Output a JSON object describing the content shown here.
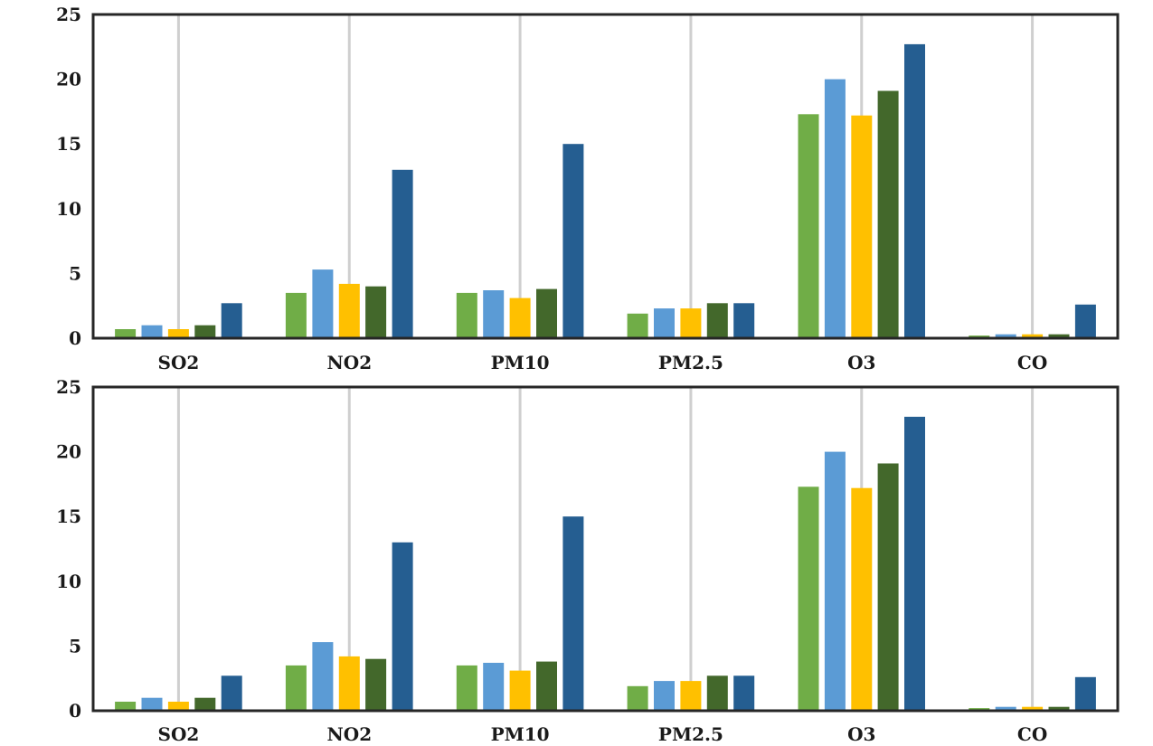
{
  "chart_data": [
    {
      "type": "bar",
      "categories": [
        "SO2",
        "NO2",
        "PM10",
        "PM2.5",
        "O3",
        "CO"
      ],
      "ylim": [
        0,
        25
      ],
      "yticks": [
        0,
        5,
        10,
        15,
        20,
        25
      ],
      "grid": "vertical-at-categories",
      "legend": "none",
      "series": [
        {
          "color": "#70ad47",
          "values": [
            0.7,
            3.5,
            3.5,
            1.9,
            17.3,
            0.2
          ]
        },
        {
          "color": "#5b9bd5",
          "values": [
            1.0,
            5.3,
            3.7,
            2.3,
            20.0,
            0.3
          ]
        },
        {
          "color": "#ffc000",
          "values": [
            0.7,
            4.2,
            3.1,
            2.3,
            17.2,
            0.3
          ]
        },
        {
          "color": "#43682b",
          "values": [
            1.0,
            4.0,
            3.8,
            2.7,
            19.1,
            0.3
          ]
        },
        {
          "color": "#255e91",
          "values": [
            2.7,
            13.0,
            15.0,
            2.7,
            22.7,
            2.6
          ]
        }
      ]
    },
    {
      "type": "bar",
      "categories": [
        "SO2",
        "NO2",
        "PM10",
        "PM2.5",
        "O3",
        "CO"
      ],
      "ylim": [
        0,
        25
      ],
      "yticks": [
        0,
        5,
        10,
        15,
        20,
        25
      ],
      "grid": "vertical-at-categories",
      "legend": "none",
      "series": [
        {
          "color": "#70ad47",
          "values": [
            0.7,
            3.5,
            3.5,
            1.9,
            17.3,
            0.2
          ]
        },
        {
          "color": "#5b9bd5",
          "values": [
            1.0,
            5.3,
            3.7,
            2.3,
            20.0,
            0.3
          ]
        },
        {
          "color": "#ffc000",
          "values": [
            0.7,
            4.2,
            3.1,
            2.3,
            17.2,
            0.3
          ]
        },
        {
          "color": "#43682b",
          "values": [
            1.0,
            4.0,
            3.8,
            2.7,
            19.1,
            0.3
          ]
        },
        {
          "color": "#255e91",
          "values": [
            2.7,
            13.0,
            15.0,
            2.7,
            22.7,
            2.6
          ]
        }
      ]
    }
  ]
}
